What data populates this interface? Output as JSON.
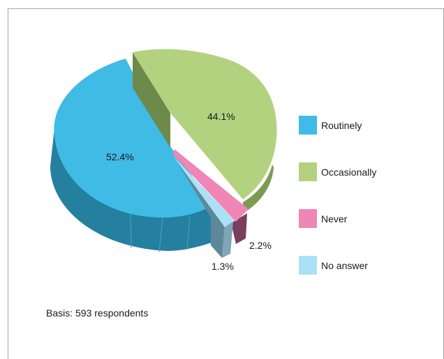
{
  "chart_data": {
    "type": "pie",
    "style": "3d-exploded",
    "categories": [
      "Routinely",
      "Occasionally",
      "Never",
      "No answer"
    ],
    "values": [
      52.4,
      44.1,
      2.2,
      1.3
    ],
    "value_labels": [
      "52.4%",
      "44.1%",
      "2.2%",
      "1.3%"
    ],
    "colors": {
      "Routinely": "#3fbbe6",
      "Occasionally": "#b3d280",
      "Never": "#ef86b6",
      "No answer": "#abe1f6"
    },
    "legend_position": "right"
  },
  "legend": [
    {
      "label": "Routinely",
      "color": "#3fbbe6"
    },
    {
      "label": "Occasionally",
      "color": "#b3d280"
    },
    {
      "label": "Never",
      "color": "#ef86b6"
    },
    {
      "label": "No answer",
      "color": "#abe1f6"
    }
  ],
  "footnote": "Basis: 593 respondents"
}
